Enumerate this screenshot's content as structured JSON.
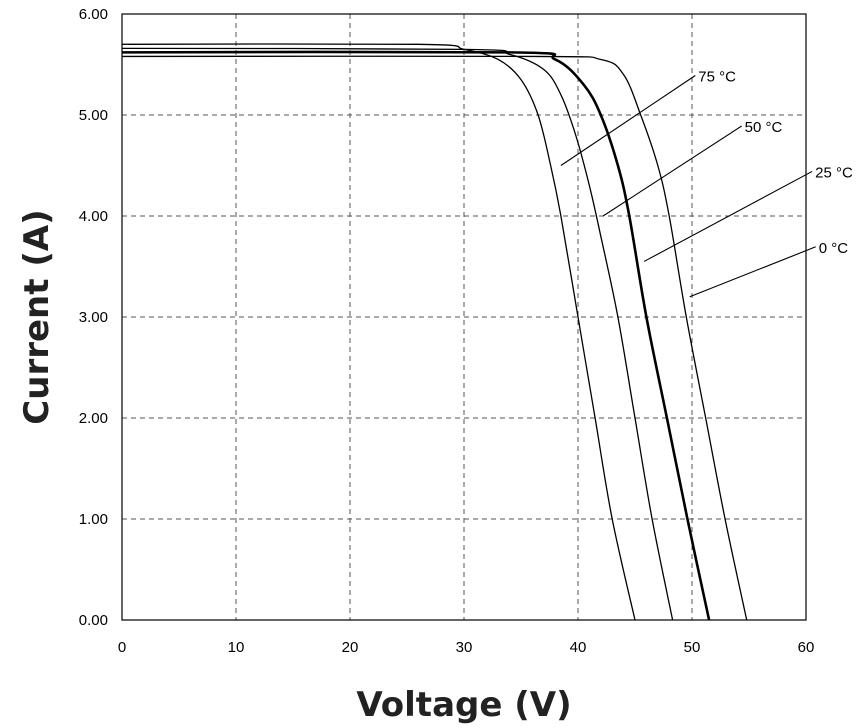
{
  "chart_data": {
    "type": "line",
    "xlabel": "Voltage (V)",
    "ylabel": "Current (A)",
    "xlim": [
      0,
      60
    ],
    "ylim": [
      0,
      6
    ],
    "xticks": [
      "0",
      "10",
      "20",
      "30",
      "40",
      "50",
      "60"
    ],
    "yticks": [
      "0.00",
      "1.00",
      "2.00",
      "3.00",
      "4.00",
      "5.00",
      "6.00"
    ],
    "grid": true,
    "series": [
      {
        "name": "75 °C",
        "points": [
          [
            0,
            5.7
          ],
          [
            26,
            5.7
          ],
          [
            30,
            5.65
          ],
          [
            33,
            5.55
          ],
          [
            35,
            5.35
          ],
          [
            36.5,
            5.0
          ],
          [
            37.6,
            4.5
          ],
          [
            38.5,
            4.0
          ],
          [
            40,
            3.0
          ],
          [
            41.5,
            2.0
          ],
          [
            43,
            1.0
          ],
          [
            45,
            0.0
          ]
        ]
      },
      {
        "name": "50 °C",
        "points": [
          [
            0,
            5.66
          ],
          [
            30,
            5.65
          ],
          [
            34,
            5.6
          ],
          [
            37,
            5.45
          ],
          [
            38.5,
            5.2
          ],
          [
            39.8,
            4.8
          ],
          [
            41,
            4.3
          ],
          [
            42,
            3.8
          ],
          [
            43.5,
            3.0
          ],
          [
            45,
            2.0
          ],
          [
            46.5,
            1.0
          ],
          [
            48.3,
            0.0
          ]
        ]
      },
      {
        "name": "25 °C",
        "points": [
          [
            0,
            5.62
          ],
          [
            34,
            5.62
          ],
          [
            38,
            5.55
          ],
          [
            40.5,
            5.3
          ],
          [
            42,
            5.0
          ],
          [
            43.5,
            4.5
          ],
          [
            44.5,
            4.0
          ],
          [
            46,
            3.0
          ],
          [
            47.8,
            2.0
          ],
          [
            49.6,
            1.0
          ],
          [
            51.5,
            0.0
          ]
        ]
      },
      {
        "name": "0 °C",
        "points": [
          [
            0,
            5.58
          ],
          [
            36,
            5.58
          ],
          [
            42,
            5.55
          ],
          [
            44,
            5.4
          ],
          [
            45.5,
            5.0
          ],
          [
            47,
            4.5
          ],
          [
            48,
            4.0
          ],
          [
            49.5,
            3.0
          ],
          [
            51.2,
            2.0
          ],
          [
            52.9,
            1.0
          ],
          [
            54.8,
            0.0
          ]
        ]
      }
    ],
    "annotations": [
      {
        "text": "75 °C",
        "series": "75 °C",
        "at": [
          38.5,
          4.5
        ]
      },
      {
        "text": "50 °C",
        "series": "50 °C",
        "at": [
          42.2,
          4.0
        ]
      },
      {
        "text": "25 °C",
        "series": "25 °C",
        "at": [
          45.8,
          3.55
        ]
      },
      {
        "text": "0 °C",
        "series": "0 °C",
        "at": [
          49.8,
          3.2
        ]
      }
    ]
  }
}
